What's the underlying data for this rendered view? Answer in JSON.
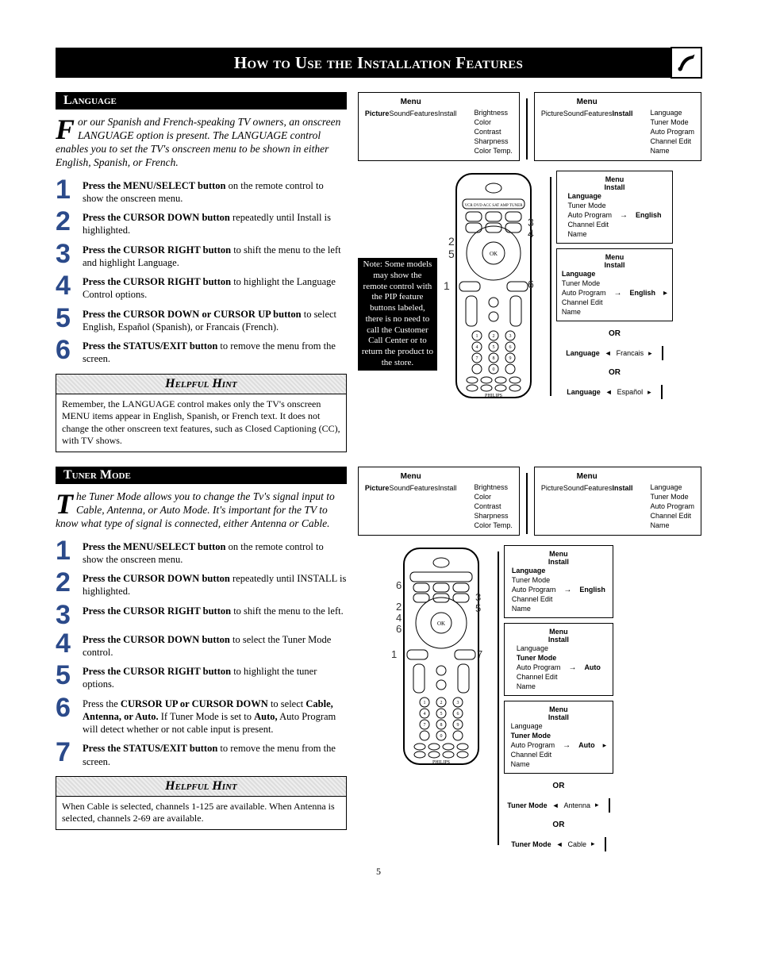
{
  "pageTitle": "How to Use the Installation Features",
  "pageNumber": "5",
  "sections": {
    "language": {
      "header": "Language",
      "intro": {
        "dropcap": "F",
        "text": "or our Spanish and French-speaking TV owners, an onscreen LANGUAGE option is present. The LANGUAGE control enables you to set the TV's onscreen menu to be shown in either English, Spanish, or French."
      },
      "steps": [
        {
          "num": "1",
          "bold": "Press the MENU/SELECT button ",
          "rest": "on the remote control to show the onscreen menu."
        },
        {
          "num": "2",
          "bold": "Press the CURSOR DOWN button ",
          "rest": "repeatedly until Install is highlighted."
        },
        {
          "num": "3",
          "bold": "Press the CURSOR RIGHT button ",
          "rest": "to shift the menu to the left and highlight Language."
        },
        {
          "num": "4",
          "bold": "Press the CURSOR RIGHT button ",
          "rest": "to highlight the Language Control options."
        },
        {
          "num": "5",
          "bold": "Press the CURSOR DOWN or CURSOR UP button ",
          "rest": "to select English, Español (Spanish), or Francais (French)."
        },
        {
          "num": "6",
          "bold": "Press the STATUS/EXIT button ",
          "rest": "to remove the menu from the screen."
        }
      ],
      "hintHeader": "Helpful Hint",
      "hintBody": "Remember, the LANGUAGE control makes only the TV's onscreen MENU items appear in English, Spanish, or French text. It does not change the other onscreen text features, such as Closed Captioning (CC), with TV shows.",
      "remoteNote": "Note: Some models may show the remote control with the PIP feature buttons labeled, there is no need to call the Customer Call Center or to return the product to the store.",
      "menus": {
        "mainLeft": [
          "Picture",
          "Sound",
          "Features",
          "Install"
        ],
        "mainRight": [
          "Brightness",
          "Color",
          "Contrast",
          "Sharpness",
          "Color Temp."
        ],
        "sub1": [
          "Picture",
          "Sound",
          "Features",
          "Install"
        ],
        "sub1Right": [
          "Language",
          "Tuner Mode",
          "Auto Program",
          "Channel Edit",
          "Name"
        ],
        "panel2Header": "Menu\nInstall",
        "panel2Left": [
          "Language",
          "Tuner Mode",
          "Auto Program",
          "Channel Edit",
          "Name"
        ],
        "panel2Sel": "English",
        "panel3Header": "Menu\nInstall",
        "panel3Left": [
          "Language",
          "Tuner Mode",
          "Auto Program",
          "Channel Edit",
          "Name"
        ],
        "panel3Sel": "English",
        "or": "OR",
        "lang2": "Francais",
        "lang3": "Español"
      }
    },
    "tuner": {
      "header": "Tuner Mode",
      "intro": {
        "dropcap": "T",
        "text": "he Tuner Mode allows you to change the Tv's signal input to Cable, Antenna, or Auto Mode. It's important for the TV to know what type of signal is connected, either Antenna or Cable."
      },
      "steps": [
        {
          "num": "1",
          "bold": "Press the MENU/SELECT button ",
          "rest": "on the remote control to show the onscreen menu."
        },
        {
          "num": "2",
          "bold": "Press the  CURSOR DOWN button ",
          "rest": "repeatedly until INSTALL is highlighted."
        },
        {
          "num": "3",
          "bold": "Press the CURSOR RIGHT button ",
          "rest": "to shift the menu to the left."
        },
        {
          "num": "4",
          "bold": "Press the CURSOR DOWN button ",
          "rest": "to select the Tuner Mode control."
        },
        {
          "num": "5",
          "bold": "Press the CURSOR RIGHT button ",
          "rest": "to highlight the tuner options."
        },
        {
          "num": "6",
          "plain": "Press the ",
          "bold": "CURSOR UP or CURSOR DOWN ",
          "rest": "to select Cable, Antenna, or Auto. If Tuner Mode is set to Auto, Auto Program will detect whether or not cable input is present.",
          "restBold": "Cable, Antenna, or Auto."
        },
        {
          "num": "7",
          "bold": "Press the STATUS/EXIT button ",
          "rest": "to remove the menu from the screen."
        }
      ],
      "hintHeader": "Helpful Hint",
      "hintBody": "When Cable is selected, channels 1-125 are available. When Antenna is selected, channels 2-69 are available.",
      "menus": {
        "mainLeft": [
          "Picture",
          "Sound",
          "Features",
          "Install"
        ],
        "mainRight": [
          "Brightness",
          "Color",
          "Contrast",
          "Sharpness",
          "Color Temp."
        ],
        "sub1": [
          "Picture",
          "Sound",
          "Features",
          "Install"
        ],
        "sub1Right": [
          "Language",
          "Tuner Mode",
          "Auto Program",
          "Channel Edit",
          "Name"
        ],
        "panel2Header": "Menu\nInstall",
        "panel2Left": [
          "Language",
          "Tuner Mode",
          "Auto Program",
          "Channel Edit",
          "Name"
        ],
        "panel2Sel": "English",
        "panel3Header": "Menu\nInstall",
        "panel3Left": [
          "Language",
          "Tuner Mode",
          "Auto Program",
          "Channel Edit",
          "Name"
        ],
        "panel3Sel": "Auto",
        "panel4Header": "Menu\nInstall",
        "panel4Left": [
          "Language",
          "Tuner Mode",
          "Auto Program",
          "Channel Edit",
          "Name"
        ],
        "panel4Sel": "Auto",
        "or": "OR",
        "opt2": "Antenna",
        "opt3": "Cable",
        "tunerLabel": "Tuner Mode"
      }
    }
  },
  "remoteBrand": "PHILIPS"
}
